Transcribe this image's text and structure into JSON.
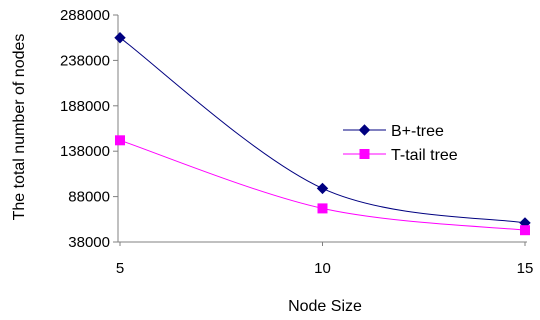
{
  "chart_data": {
    "type": "line",
    "title": "",
    "xlabel": "Node Size",
    "ylabel": "The total number of nodes",
    "x": [
      5,
      10,
      15
    ],
    "x_tick_labels": [
      "5",
      "10",
      "15"
    ],
    "y_tick_labels": [
      "288000",
      "238000",
      "188000",
      "138000",
      "88000",
      "38000"
    ],
    "y_ticks": [
      38000,
      88000,
      138000,
      188000,
      238000,
      288000
    ],
    "ylim": [
      38000,
      288000
    ],
    "xlim": [
      5,
      15
    ],
    "grid": false,
    "legend_position": "right",
    "series": [
      {
        "name": "B+-tree",
        "values": [
          263000,
          97000,
          59000
        ],
        "color": "#000080",
        "marker": "diamond"
      },
      {
        "name": "T-tail tree",
        "values": [
          150000,
          75000,
          51000
        ],
        "color": "#FF00FF",
        "marker": "square"
      }
    ]
  }
}
